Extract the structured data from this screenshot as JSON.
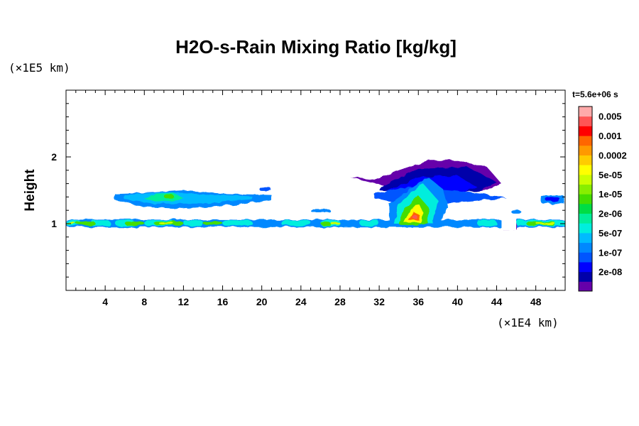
{
  "chart_data": {
    "type": "heatmap",
    "title": "H2O-s-Rain Mixing Ratio [kg/kg]",
    "ylabel": "Height",
    "xlabel": "",
    "x_unit": "(×1E4 km)",
    "y_unit": "(×1E5 km)",
    "time_label": "t=5.6e+06 s",
    "x_ticks": [
      "4",
      "8",
      "12",
      "16",
      "20",
      "24",
      "28",
      "32",
      "36",
      "40",
      "44",
      "48"
    ],
    "y_ticks": [
      "1",
      "2"
    ],
    "xlim": [
      0,
      51
    ],
    "ylim": [
      0,
      3
    ],
    "colorbar": {
      "labels": [
        "0.005",
        "0.001",
        "0.0002",
        "5e-05",
        "1e-05",
        "2e-06",
        "5e-07",
        "1e-07",
        "2e-08"
      ],
      "colors": [
        "#ffaaaa",
        "#ff5555",
        "#ff0000",
        "#ff6600",
        "#ff9900",
        "#ffcc00",
        "#ffff00",
        "#ccff00",
        "#88ee00",
        "#44dd00",
        "#00dd44",
        "#00ee99",
        "#00eedd",
        "#00bbff",
        "#0088ff",
        "#0055ff",
        "#0000ff",
        "#0000aa",
        "#6600aa"
      ]
    },
    "features": [
      {
        "name": "surface-band",
        "x": [
          0,
          51
        ],
        "y": [
          0.95,
          1.06
        ],
        "levels": [
          8,
          9,
          10,
          11,
          12,
          13,
          14
        ]
      },
      {
        "name": "left-layer",
        "x": [
          5,
          21
        ],
        "y": [
          1.2,
          1.5
        ],
        "levels": [
          11,
          12,
          13,
          14
        ]
      },
      {
        "name": "convective-core",
        "x": [
          32,
          44
        ],
        "y": [
          0.95,
          1.9
        ],
        "levels": [
          2,
          3,
          4,
          5,
          6,
          7,
          8,
          9,
          10,
          11,
          12,
          13,
          14,
          15,
          16,
          17,
          18
        ]
      },
      {
        "name": "anvil-top",
        "x": [
          31,
          44
        ],
        "y": [
          1.45,
          1.95
        ],
        "levels": [
          15,
          16,
          17,
          18
        ]
      },
      {
        "name": "right-cloud",
        "x": [
          48,
          51
        ],
        "y": [
          1.3,
          1.45
        ],
        "levels": [
          12,
          13,
          14
        ]
      }
    ]
  }
}
